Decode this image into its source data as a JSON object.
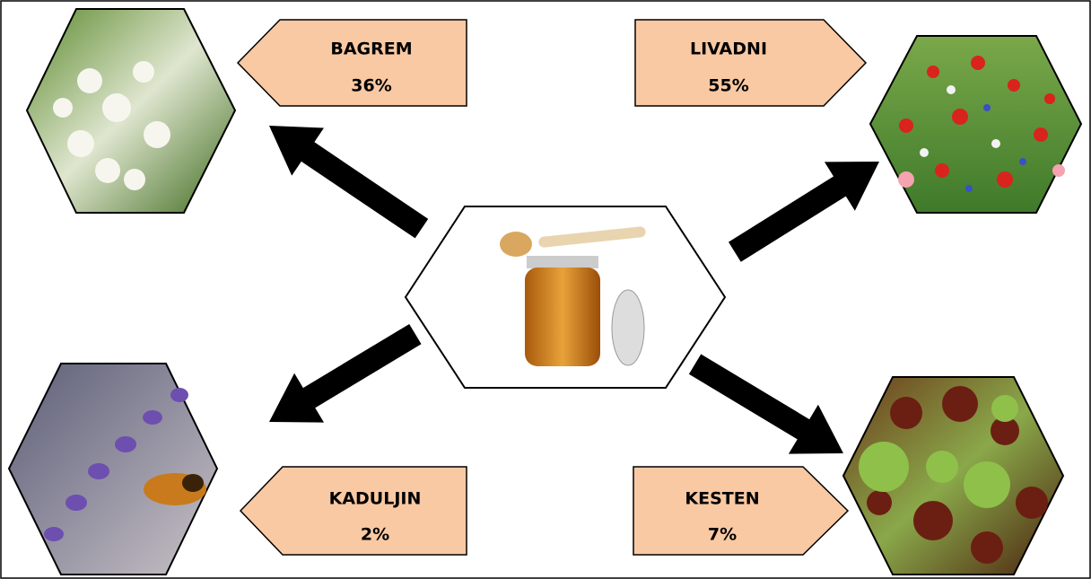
{
  "nodes": [
    {
      "label": "BAGREM",
      "share": "36%"
    },
    {
      "label": "LIVADNI",
      "share": "55%"
    },
    {
      "label": "KADULJIN",
      "share": "2%"
    },
    {
      "label": "KESTEN",
      "share": "7%"
    }
  ]
}
